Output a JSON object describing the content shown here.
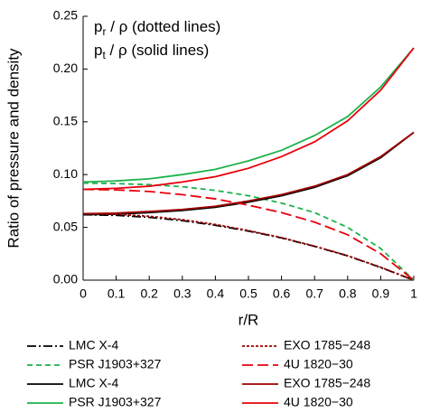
{
  "chart_data": {
    "type": "line",
    "annotations": [
      {
        "base": "p",
        "sub": "r",
        "text": " / ρ  (dotted lines)"
      },
      {
        "base": "p",
        "sub": "t",
        "text": " / ρ  (solid lines)"
      }
    ],
    "x_label": "r/R",
    "y_label": "Ratio of pressure and density",
    "x": [
      0,
      0.1,
      0.2,
      0.3,
      0.4,
      0.5,
      0.6,
      0.7,
      0.8,
      0.9,
      1
    ],
    "xlim": [
      0,
      1
    ],
    "xticks": [
      0,
      0.1,
      0.2,
      0.3,
      0.4,
      0.5,
      0.6,
      0.7,
      0.8,
      0.9,
      1
    ],
    "ylim": [
      0,
      0.25
    ],
    "yticks": [
      {
        "value": 0,
        "label": "0.00"
      },
      {
        "value": 0.05,
        "label": "0.05"
      },
      {
        "value": 0.1,
        "label": "0.10"
      },
      {
        "value": 0.15,
        "label": "0.15"
      },
      {
        "value": 0.2,
        "label": "0.20"
      },
      {
        "value": 0.25,
        "label": "0.25"
      }
    ],
    "series": [
      {
        "name": "LMC X-4",
        "color": "#000000",
        "style": "dashdot",
        "values": [
          0.062,
          0.0614,
          0.0595,
          0.0564,
          0.052,
          0.0465,
          0.04,
          0.032,
          0.023,
          0.012,
          0
        ]
      },
      {
        "name": "PSR J1903+327",
        "color": "#1db24b",
        "style": "dashed",
        "values": [
          0.092,
          0.0915,
          0.0905,
          0.0885,
          0.085,
          0.08,
          0.073,
          0.064,
          0.05,
          0.03,
          0
        ]
      },
      {
        "name": "LMC X-4",
        "color": "#000000",
        "style": "solid",
        "values": [
          0.062,
          0.0625,
          0.064,
          0.066,
          0.069,
          0.074,
          0.08,
          0.088,
          0.099,
          0.116,
          0.14
        ]
      },
      {
        "name": "PSR J1903+327",
        "color": "#1db24b",
        "style": "solid",
        "values": [
          0.093,
          0.094,
          0.096,
          0.1,
          0.105,
          0.113,
          0.123,
          0.137,
          0.155,
          0.183,
          0.22
        ]
      },
      {
        "name": "EXO 1785−248",
        "color": "#a00000",
        "style": "dotted",
        "values": [
          0.063,
          0.0624,
          0.0605,
          0.0573,
          0.0528,
          0.047,
          0.0403,
          0.0322,
          0.0232,
          0.0122,
          0
        ]
      },
      {
        "name": "4U 1820−30",
        "color": "#e8000b",
        "style": "longdash",
        "values": [
          0.086,
          0.0855,
          0.084,
          0.081,
          0.077,
          0.071,
          0.064,
          0.055,
          0.043,
          0.025,
          0
        ]
      },
      {
        "name": "EXO 1785−248",
        "color": "#a00000",
        "style": "solid",
        "values": [
          0.063,
          0.0635,
          0.065,
          0.067,
          0.07,
          0.075,
          0.081,
          0.089,
          0.1,
          0.117,
          0.14
        ]
      },
      {
        "name": "4U 1820−30",
        "color": "#e8000b",
        "style": "solid",
        "values": [
          0.086,
          0.087,
          0.089,
          0.093,
          0.098,
          0.106,
          0.117,
          0.131,
          0.151,
          0.18,
          0.22
        ]
      }
    ]
  }
}
